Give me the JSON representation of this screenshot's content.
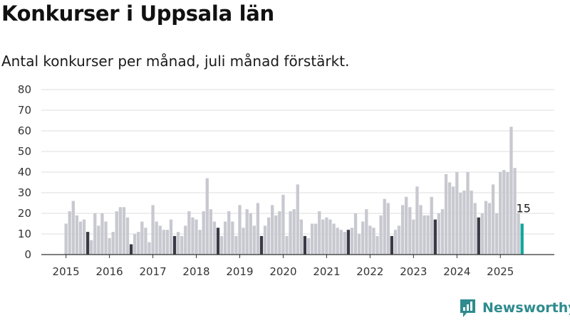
{
  "colors": {
    "normal_bar": "#c8c8d0",
    "july_bar": "#3a3a46",
    "latest_bar": "#14a59a",
    "grid": "#dddddd",
    "brand": "#2f8b8e"
  },
  "brand": {
    "name": "Newsworthy",
    "icon": "newsworthy-logo-icon"
  },
  "chart_data": {
    "type": "bar",
    "title": "Konkurser i Uppsala län",
    "subtitle": "Antal konkurser per månad, juli månad förstärkt.",
    "xlabel": "",
    "ylabel": "",
    "ylim": [
      0,
      80
    ],
    "yticks": [
      0,
      10,
      20,
      30,
      40,
      50,
      60,
      70,
      80
    ],
    "grid": true,
    "highlight": "july",
    "start": "2015-01",
    "year_labels": [
      "2015",
      "2016",
      "2017",
      "2018",
      "2019",
      "2020",
      "2021",
      "2022",
      "2023",
      "2024",
      "2025"
    ],
    "values": [
      15,
      21,
      26,
      19,
      16,
      17,
      11,
      7,
      20,
      14,
      20,
      16,
      8,
      11,
      21,
      23,
      23,
      18,
      5,
      10,
      11,
      16,
      13,
      6,
      24,
      16,
      14,
      12,
      12,
      17,
      9,
      11,
      9,
      14,
      21,
      18,
      17,
      12,
      21,
      37,
      22,
      16,
      13,
      9,
      16,
      21,
      16,
      9,
      24,
      13,
      22,
      20,
      14,
      25,
      9,
      14,
      18,
      24,
      19,
      21,
      29,
      9,
      21,
      22,
      34,
      17,
      9,
      8,
      15,
      15,
      21,
      17,
      18,
      17,
      15,
      13,
      12,
      11,
      12,
      13,
      20,
      10,
      16,
      22,
      14,
      13,
      9,
      19,
      27,
      25,
      9,
      12,
      14,
      24,
      28,
      23,
      17,
      33,
      24,
      19,
      19,
      28,
      17,
      20,
      22,
      39,
      35,
      33,
      40,
      30,
      31,
      40,
      31,
      25,
      18,
      20,
      26,
      25,
      34,
      20,
      40,
      41,
      40,
      62,
      42,
      20,
      15
    ],
    "value_label": {
      "text": "15",
      "index": 126
    }
  }
}
